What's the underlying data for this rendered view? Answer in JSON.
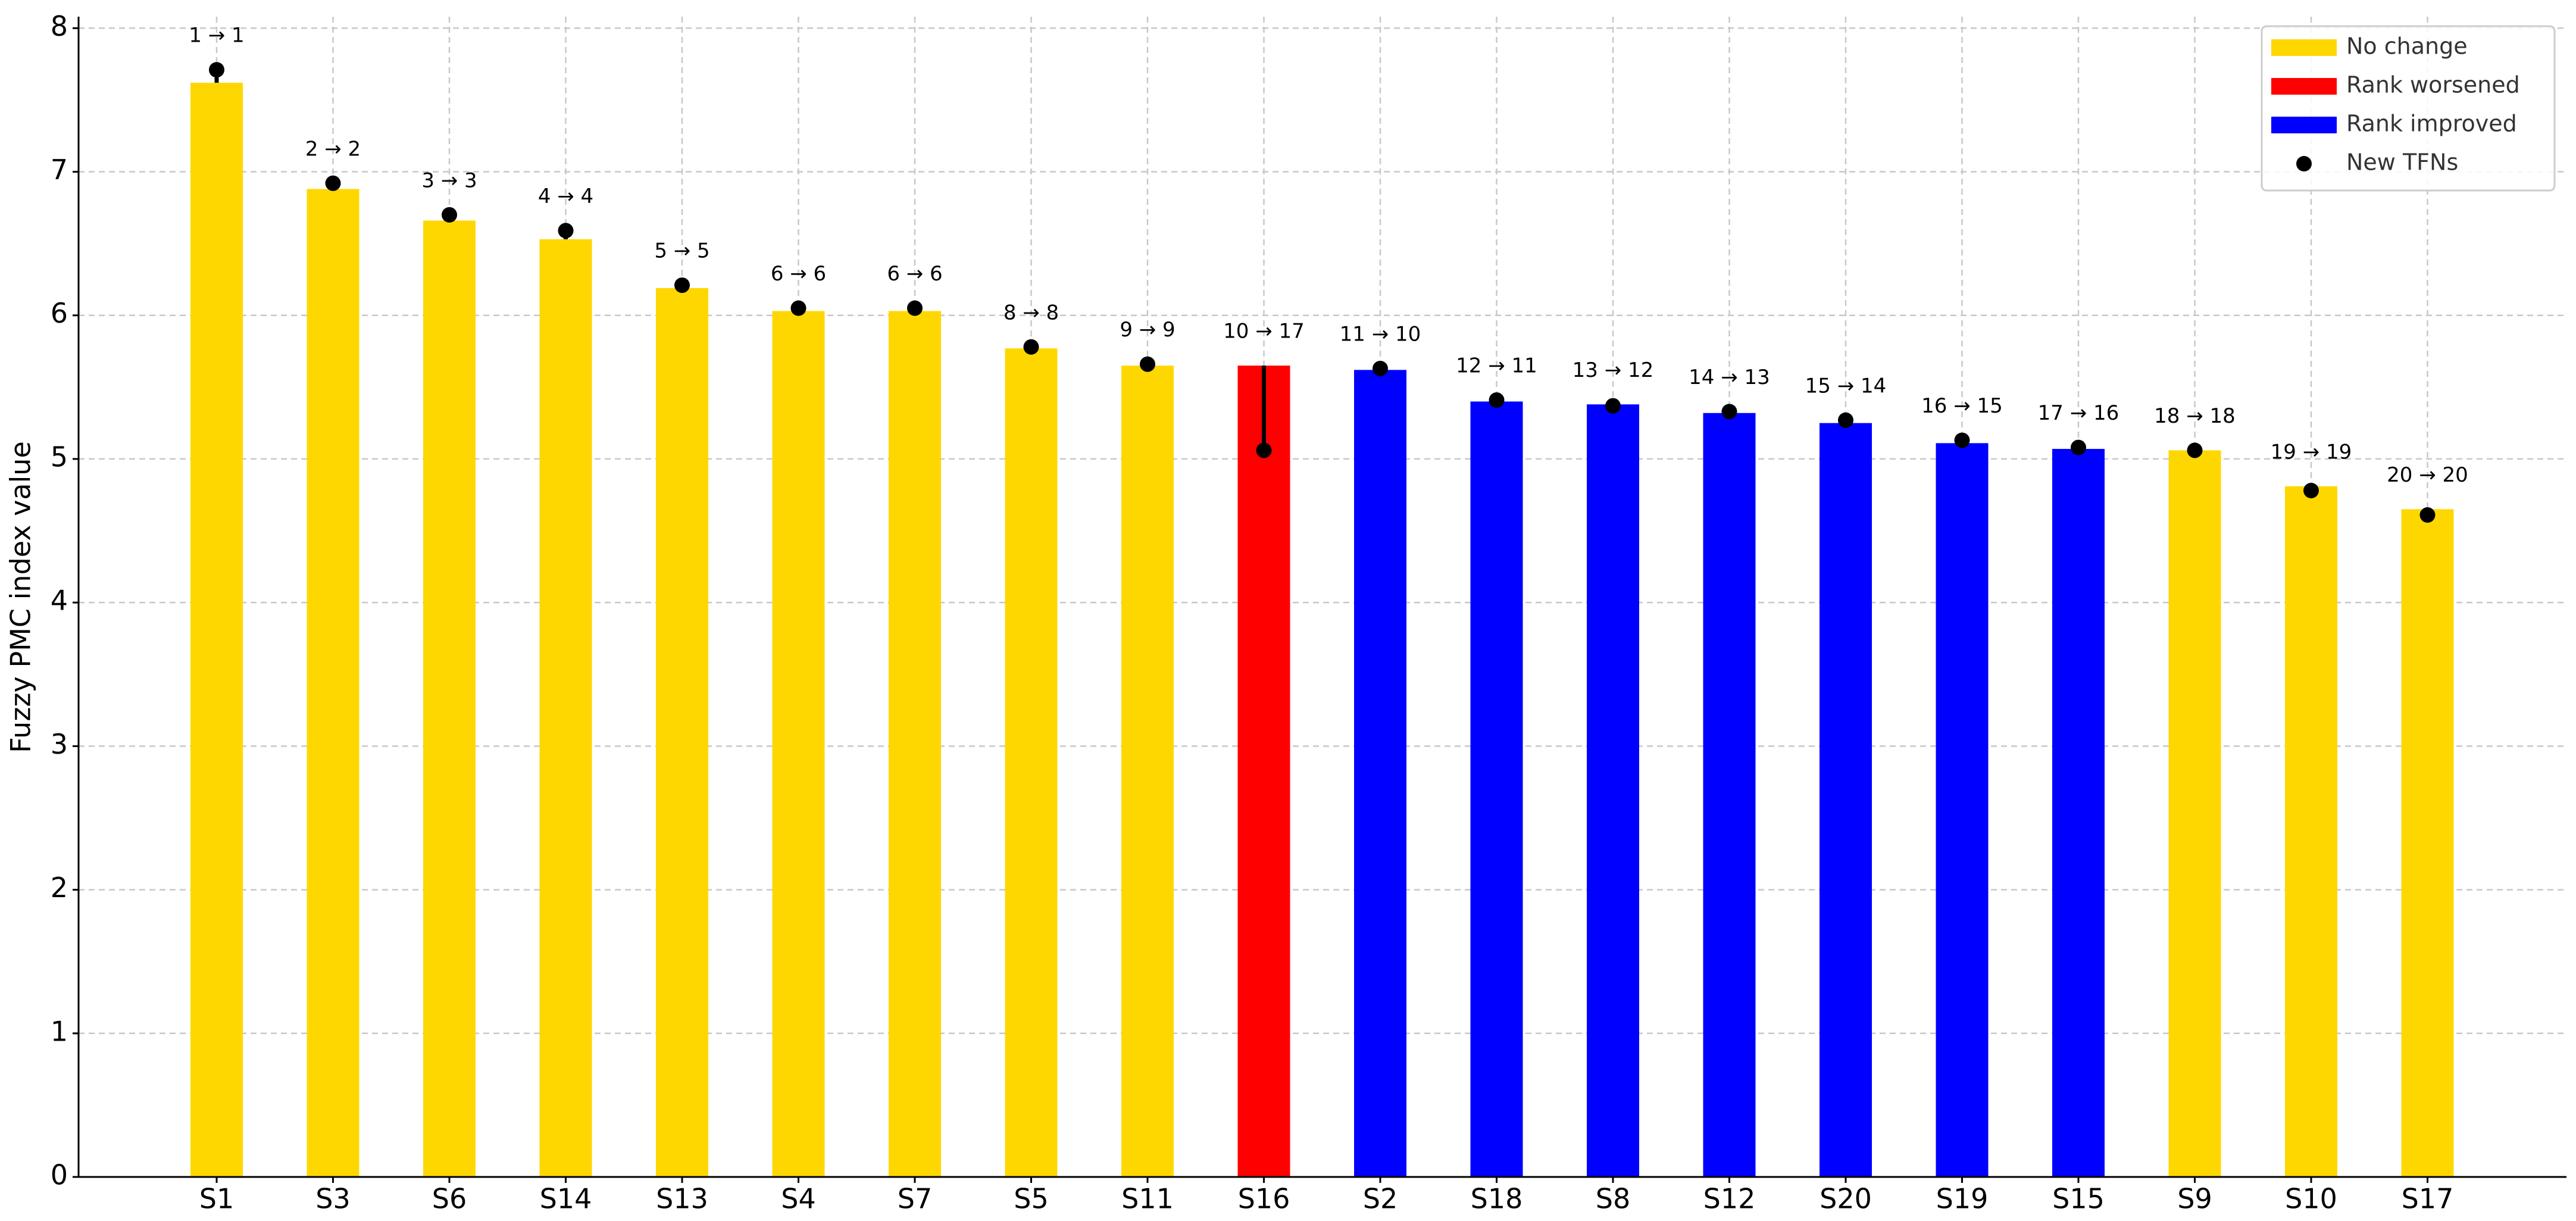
{
  "chart_data": {
    "type": "bar",
    "y_label": "Fuzzy PMC index value",
    "categories": [
      "S1",
      "S3",
      "S6",
      "S14",
      "S13",
      "S4",
      "S7",
      "S5",
      "S11",
      "S16",
      "S2",
      "S18",
      "S8",
      "S12",
      "S20",
      "S19",
      "S15",
      "S9",
      "S10",
      "S17"
    ],
    "values": [
      7.62,
      6.88,
      6.66,
      6.53,
      6.19,
      6.03,
      6.03,
      5.77,
      5.65,
      5.65,
      5.62,
      5.4,
      5.38,
      5.32,
      5.25,
      5.11,
      5.07,
      5.06,
      4.81,
      4.65
    ],
    "colors": [
      "#ffd700",
      "#ffd700",
      "#ffd700",
      "#ffd700",
      "#ffd700",
      "#ffd700",
      "#ffd700",
      "#ffd700",
      "#ffd700",
      "#ff0000",
      "#0000ff",
      "#0000ff",
      "#0000ff",
      "#0000ff",
      "#0000ff",
      "#0000ff",
      "#0000ff",
      "#ffd700",
      "#ffd700",
      "#ffd700"
    ],
    "points": {
      "name": "New TFNs",
      "color": "#000000",
      "values": [
        7.71,
        6.92,
        6.7,
        6.59,
        6.21,
        6.05,
        6.05,
        5.78,
        5.66,
        5.06,
        5.63,
        5.41,
        5.37,
        5.33,
        5.27,
        5.13,
        5.08,
        5.06,
        4.78,
        4.61
      ]
    },
    "annotations": [
      "1 → 1",
      "2 → 2",
      "3 → 3",
      "4 → 4",
      "5 → 5",
      "6 → 6",
      "6 → 6",
      "8 → 8",
      "9 → 9",
      "10 → 17",
      "11 → 10",
      "12 → 11",
      "13 → 12",
      "14 → 13",
      "15 → 14",
      "16 → 15",
      "17 → 16",
      "18 → 18",
      "19 → 19",
      "20 → 20"
    ],
    "legend": [
      {
        "name": "No change",
        "color": "#ffd700"
      },
      {
        "name": "Rank worsened",
        "color": "#ff0000"
      },
      {
        "name": "Rank improved",
        "color": "#0000ff"
      }
    ],
    "legend_position": "upper right",
    "ylim": [
      0,
      8.08
    ],
    "yticks": [
      0,
      1,
      2,
      3,
      4,
      5,
      6,
      7,
      8
    ],
    "grid": true
  }
}
